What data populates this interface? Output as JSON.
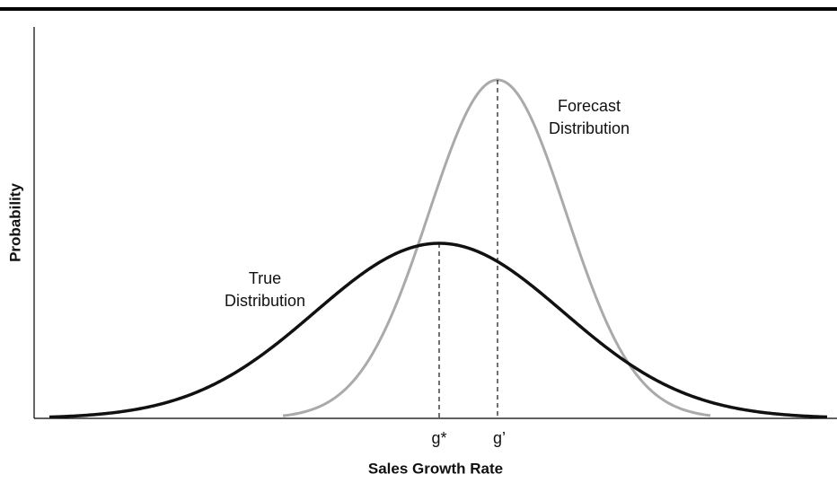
{
  "axes": {
    "y_label": "Probability",
    "x_label": "Sales Growth Rate"
  },
  "curves": [
    {
      "label": [
        "True",
        "Distribution"
      ]
    },
    {
      "label": [
        "Forecast",
        "Distribution"
      ]
    }
  ],
  "markers": [
    "g*",
    "g’"
  ]
}
